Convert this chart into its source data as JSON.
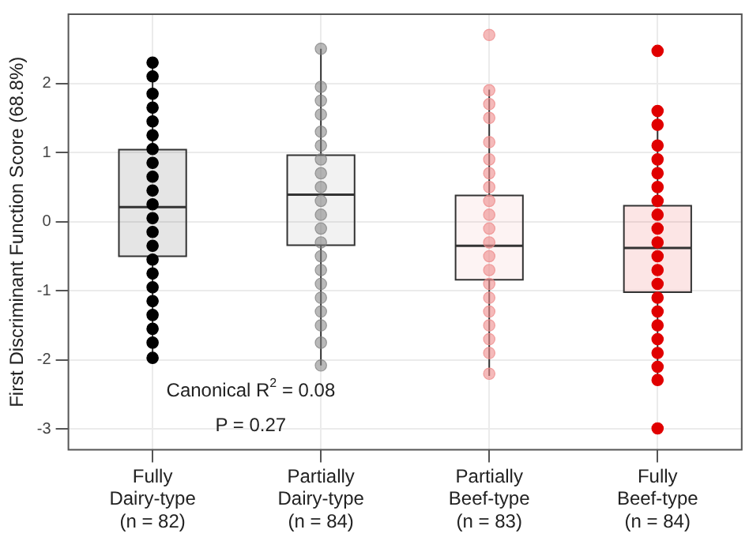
{
  "chart_data": {
    "type": "box",
    "ylabel": "First Discriminant Function Score (68.8%)",
    "categories": [
      "Fully\nDairy-type\n(n = 82)",
      "Partially\nDairy-type\n(n = 84)",
      "Partially\nBeef-type\n(n = 83)",
      "Fully\nBeef-type\n(n = 84)"
    ],
    "boxes": [
      {
        "low": -1.97,
        "q1": -0.5,
        "median": 0.21,
        "q3": 1.04,
        "high": 2.3
      },
      {
        "low": -2.08,
        "q1": -0.34,
        "median": 0.39,
        "q3": 0.96,
        "high": 2.5
      },
      {
        "low": -2.23,
        "q1": -0.84,
        "median": -0.35,
        "q3": 0.38,
        "high": 1.91
      },
      {
        "low": -2.29,
        "q1": -1.02,
        "median": -0.38,
        "q3": 0.23,
        "high": 1.6
      }
    ],
    "colors": [
      "#000000",
      "#7f7f7f",
      "#ee8c8c",
      "#e00000"
    ],
    "series": [
      {
        "type": "scatter",
        "color": "#000000",
        "x": [
          "Fully\nDairy-type\n(n = 82)",
          "Fully\nDairy-type\n(n = 82)",
          "Fully\nDairy-type\n(n = 82)",
          "Fully\nDairy-type\n(n = 82)",
          "Fully\nDairy-type\n(n = 82)",
          "Fully\nDairy-type\n(n = 82)",
          "Fully\nDairy-type\n(n = 82)",
          "Fully\nDairy-type\n(n = 82)",
          "Fully\nDairy-type\n(n = 82)",
          "Fully\nDairy-type\n(n = 82)",
          "Fully\nDairy-type\n(n = 82)",
          "Fully\nDairy-type\n(n = 82)",
          "Fully\nDairy-type\n(n = 82)",
          "Fully\nDairy-type\n(n = 82)",
          "Fully\nDairy-type\n(n = 82)",
          "Fully\nDairy-type\n(n = 82)",
          "Fully\nDairy-type\n(n = 82)",
          "Fully\nDairy-type\n(n = 82)",
          "Fully\nDairy-type\n(n = 82)",
          "Fully\nDairy-type\n(n = 82)",
          "Fully\nDairy-type\n(n = 82)",
          "Fully\nDairy-type\n(n = 82)"
        ],
        "values": [
          2.3,
          2.1,
          1.85,
          1.65,
          1.45,
          1.25,
          1.05,
          0.85,
          0.65,
          0.45,
          0.25,
          0.05,
          -0.15,
          -0.35,
          -0.55,
          -0.75,
          -0.95,
          -1.15,
          -1.35,
          -1.55,
          -1.75,
          -1.97
        ]
      },
      {
        "type": "scatter",
        "color": "#7f7f7f",
        "x": [
          "Partially\nDairy-type\n(n = 84)",
          "Partially\nDairy-type\n(n = 84)",
          "Partially\nDairy-type\n(n = 84)",
          "Partially\nDairy-type\n(n = 84)",
          "Partially\nDairy-type\n(n = 84)",
          "Partially\nDairy-type\n(n = 84)",
          "Partially\nDairy-type\n(n = 84)",
          "Partially\nDairy-type\n(n = 84)",
          "Partially\nDairy-type\n(n = 84)",
          "Partially\nDairy-type\n(n = 84)",
          "Partially\nDairy-type\n(n = 84)",
          "Partially\nDairy-type\n(n = 84)",
          "Partially\nDairy-type\n(n = 84)",
          "Partially\nDairy-type\n(n = 84)",
          "Partially\nDairy-type\n(n = 84)",
          "Partially\nDairy-type\n(n = 84)",
          "Partially\nDairy-type\n(n = 84)",
          "Partially\nDairy-type\n(n = 84)",
          "Partially\nDairy-type\n(n = 84)",
          "Partially\nDairy-type\n(n = 84)",
          "Partially\nDairy-type\n(n = 84)"
        ],
        "values": [
          2.5,
          1.95,
          1.75,
          1.55,
          1.3,
          1.1,
          0.9,
          0.7,
          0.5,
          0.3,
          0.1,
          -0.1,
          -0.3,
          -0.5,
          -0.7,
          -0.9,
          -1.1,
          -1.3,
          -1.5,
          -1.75,
          -2.08
        ]
      },
      {
        "type": "scatter",
        "color": "#ee8c8c",
        "x": [
          "Partially\nBeef-type\n(n = 83)",
          "Partially\nBeef-type\n(n = 83)",
          "Partially\nBeef-type\n(n = 83)",
          "Partially\nBeef-type\n(n = 83)",
          "Partially\nBeef-type\n(n = 83)",
          "Partially\nBeef-type\n(n = 83)",
          "Partially\nBeef-type\n(n = 83)",
          "Partially\nBeef-type\n(n = 83)",
          "Partially\nBeef-type\n(n = 83)",
          "Partially\nBeef-type\n(n = 83)",
          "Partially\nBeef-type\n(n = 83)",
          "Partially\nBeef-type\n(n = 83)",
          "Partially\nBeef-type\n(n = 83)",
          "Partially\nBeef-type\n(n = 83)",
          "Partially\nBeef-type\n(n = 83)",
          "Partially\nBeef-type\n(n = 83)",
          "Partially\nBeef-type\n(n = 83)",
          "Partially\nBeef-type\n(n = 83)",
          "Partially\nBeef-type\n(n = 83)",
          "Partially\nBeef-type\n(n = 83)",
          "Partially\nBeef-type\n(n = 83)"
        ],
        "values": [
          2.7,
          1.9,
          1.7,
          1.5,
          1.15,
          0.9,
          0.7,
          0.5,
          0.3,
          0.1,
          -0.1,
          -0.3,
          -0.5,
          -0.7,
          -0.9,
          -1.1,
          -1.3,
          -1.5,
          -1.7,
          -1.9,
          -2.2
        ]
      },
      {
        "type": "scatter",
        "color": "#e00000",
        "x": [
          "Fully\nBeef-type\n(n = 84)",
          "Fully\nBeef-type\n(n = 84)",
          "Fully\nBeef-type\n(n = 84)",
          "Fully\nBeef-type\n(n = 84)",
          "Fully\nBeef-type\n(n = 84)",
          "Fully\nBeef-type\n(n = 84)",
          "Fully\nBeef-type\n(n = 84)",
          "Fully\nBeef-type\n(n = 84)",
          "Fully\nBeef-type\n(n = 84)",
          "Fully\nBeef-type\n(n = 84)",
          "Fully\nBeef-type\n(n = 84)",
          "Fully\nBeef-type\n(n = 84)",
          "Fully\nBeef-type\n(n = 84)",
          "Fully\nBeef-type\n(n = 84)",
          "Fully\nBeef-type\n(n = 84)",
          "Fully\nBeef-type\n(n = 84)",
          "Fully\nBeef-type\n(n = 84)",
          "Fully\nBeef-type\n(n = 84)",
          "Fully\nBeef-type\n(n = 84)",
          "Fully\nBeef-type\n(n = 84)",
          "Fully\nBeef-type\n(n = 84)",
          "Fully\nBeef-type\n(n = 84)"
        ],
        "values": [
          2.47,
          1.6,
          1.4,
          1.1,
          0.9,
          0.7,
          0.5,
          0.3,
          0.1,
          -0.1,
          -0.3,
          -0.5,
          -0.7,
          -0.9,
          -1.1,
          -1.3,
          -1.5,
          -1.7,
          -1.9,
          -2.1,
          -2.29,
          -2.99
        ]
      }
    ],
    "ylim": [
      -3.3,
      3.0
    ],
    "yticks": [
      -3,
      -2,
      -1,
      0,
      1,
      2
    ],
    "grid": true,
    "marker": "circle",
    "annotations": [
      "Canonical R$^{2}$ = 0.08",
      "P = 0.27"
    ]
  }
}
